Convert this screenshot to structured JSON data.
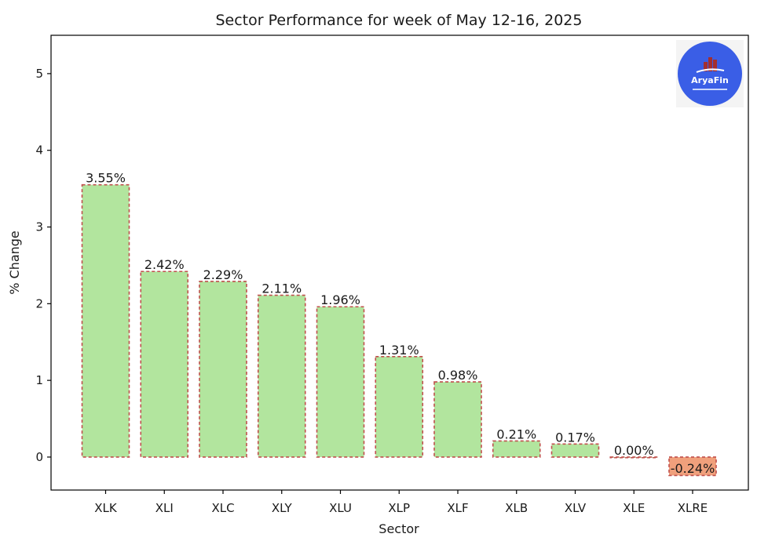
{
  "chart_data": {
    "type": "bar",
    "title": "Sector Performance for week of May 12-16, 2025",
    "xlabel": "Sector",
    "ylabel": "% Change",
    "categories": [
      "XLK",
      "XLI",
      "XLC",
      "XLY",
      "XLU",
      "XLP",
      "XLF",
      "XLB",
      "XLV",
      "XLE",
      "XLRE"
    ],
    "values": [
      3.55,
      2.42,
      2.29,
      2.11,
      1.96,
      1.31,
      0.98,
      0.21,
      0.17,
      0.0,
      -0.24
    ],
    "value_labels": [
      "3.55%",
      "2.42%",
      "2.29%",
      "2.11%",
      "1.96%",
      "1.31%",
      "0.98%",
      "0.21%",
      "0.17%",
      "0.00%",
      "-0.24%"
    ],
    "ylim": [
      -0.43,
      5.5
    ],
    "yticks": [
      0,
      1,
      2,
      3,
      4,
      5
    ],
    "grid": false,
    "colors": {
      "positive_fill": "#b2e59e",
      "negative_fill": "#f0a07c",
      "bar_edge": "#c0504d"
    }
  },
  "watermark": {
    "logo_name": "AryaFin",
    "logo_bg_color": "#3a5ee6"
  }
}
